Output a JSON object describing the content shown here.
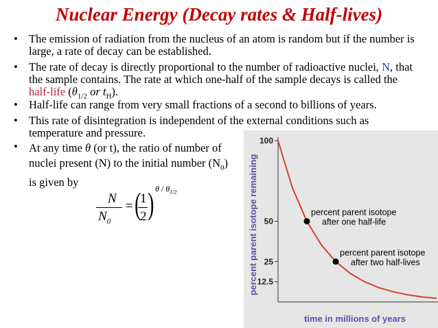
{
  "header": {
    "title": "Nuclear Energy (Decay rates & Half-lives)"
  },
  "bullets": [
    {
      "segments": [
        {
          "text": "The emission of radiation from the nucleus of an atom is random but if the number is large, a rate of decay can be established."
        }
      ]
    },
    {
      "segments": [
        {
          "text": "The rate of decay is directly proportional to the number of radioactive nuclei, "
        },
        {
          "text": "N",
          "style": "blue"
        },
        {
          "text": ", that the sample contains. The rate at which one-half of the sample decays is called the "
        },
        {
          "text": "half-life",
          "style": "red"
        },
        {
          "text": " ("
        },
        {
          "text": "θ",
          "style": "italic"
        },
        {
          "text": "1/2",
          "style": "sub"
        },
        {
          "text": " or t",
          "style": "italic"
        },
        {
          "text": "H",
          "style": "sub"
        },
        {
          "text": ")."
        }
      ]
    },
    {
      "segments": [
        {
          "text": "Half-life can range from very small fractions of a second to billions of years."
        }
      ]
    },
    {
      "segments": [
        {
          "text": "This rate of disintegration is independent of the external conditions such as temperature and pressure."
        }
      ]
    },
    {
      "segments": [
        {
          "text": "At any time "
        },
        {
          "text": "θ",
          "style": "italic"
        },
        {
          "text": " (or t), the ratio of number of nuclei present (N) to the initial number (N"
        },
        {
          "text": "0",
          "style": "sub"
        },
        {
          "text": ") is given by"
        }
      ]
    }
  ],
  "formula": {
    "numerator": "N",
    "denominator": "N",
    "denominator_sub": "0",
    "equals": "=",
    "half_top": "1",
    "half_bottom": "2",
    "exponent": "θ / θ",
    "exponent_sub": "1/2"
  },
  "chart_data": {
    "type": "line",
    "ylabel": "percent parent isotope remaining",
    "xlabel": "time in millions of years",
    "x": [
      0,
      0.5,
      1,
      1.5,
      2,
      2.5,
      3,
      3.5,
      4,
      4.5,
      5,
      5.5
    ],
    "series": [
      {
        "color": "#d9402a",
        "values": [
          100,
          70.7,
          50,
          35.4,
          25,
          17.7,
          12.5,
          8.8,
          6.3,
          4.4,
          3.1,
          2.2
        ]
      }
    ],
    "xlim": [
      0,
      5.5
    ],
    "ylim": [
      0,
      100
    ],
    "yticks": [
      100,
      50,
      25,
      12.5
    ],
    "annotations": [
      {
        "lines": [
          "percent parent isotope",
          "after one half-life"
        ],
        "x": 1,
        "y": 50
      },
      {
        "lines": [
          "percent parent isotope",
          "after two half-lives"
        ],
        "x": 2,
        "y": 25
      }
    ]
  }
}
